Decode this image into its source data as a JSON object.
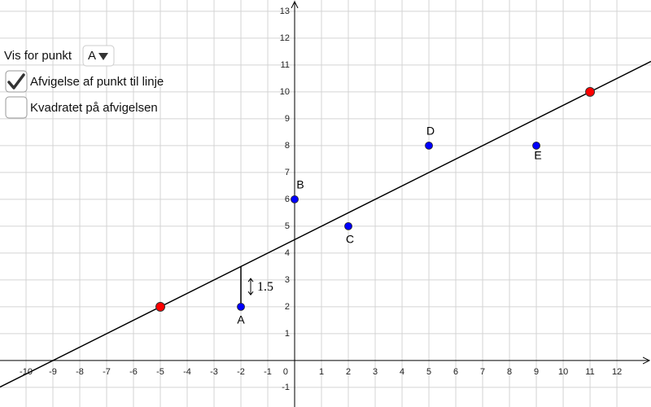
{
  "controls": {
    "select_label": "Vis for punkt",
    "select_value": "A",
    "checkboxes": [
      {
        "label": "Afvigelse af punkt til linje",
        "checked": true
      },
      {
        "label": "Kvadratet på afvigelsen",
        "checked": false
      }
    ]
  },
  "chart_data": {
    "type": "scatter",
    "xlim": [
      -10.97,
      13.27
    ],
    "ylim": [
      -1.73,
      13.42
    ],
    "xticks": [
      -10,
      -9,
      -8,
      -7,
      -6,
      -5,
      -4,
      -3,
      -2,
      -1,
      0,
      1,
      2,
      3,
      4,
      5,
      6,
      7,
      8,
      9,
      10,
      11,
      12
    ],
    "yticks": [
      -1,
      1,
      2,
      3,
      4,
      5,
      6,
      7,
      8,
      9,
      10,
      11,
      12,
      13
    ],
    "grid": true,
    "labels": [
      "A",
      "B",
      "C",
      "D",
      "E"
    ],
    "x": [
      -2,
      0,
      2,
      5,
      9
    ],
    "values": [
      2,
      6,
      5,
      8,
      8
    ],
    "color": "#0000ff",
    "line_points": {
      "x": [
        -5,
        11
      ],
      "values": [
        2,
        10
      ],
      "color": "#ff0000"
    },
    "deviation": 1.5
  }
}
